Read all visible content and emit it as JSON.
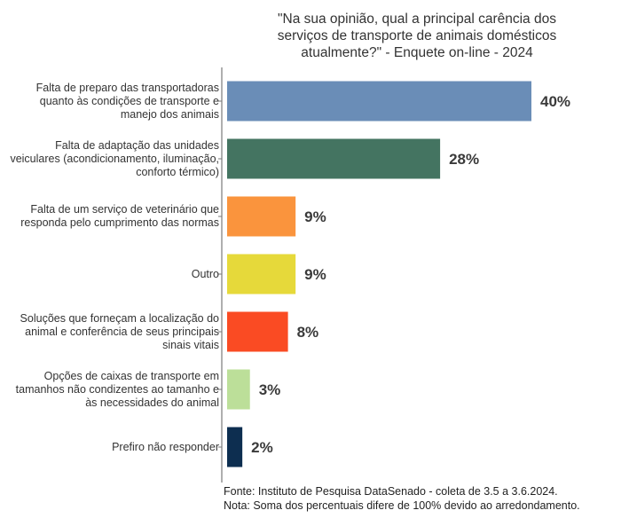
{
  "chart_data": {
    "type": "bar",
    "orientation": "horizontal",
    "title": "\"Na sua opinião, qual a principal carência dos serviços de transporte de animais domésticos atualmente?\" - Enquete on-line - 2024",
    "categories": [
      "Falta de preparo das transportadoras quanto às condições de transporte e manejo dos animais",
      "Falta de adaptação das unidades veiculares (acondicionamento, iluminação, conforto térmico)",
      "Falta de um serviço de veterinário que responda pelo cumprimento das normas",
      "Outro",
      "Soluções que forneçam a localização do animal e conferência de seus principais sinais vitais",
      "Opções de caixas de transporte em tamanhos não condizentes ao tamanho e às necessidades do animal",
      "Prefiro não responder"
    ],
    "values": [
      40,
      28,
      9,
      9,
      8,
      3,
      2
    ],
    "value_labels": [
      "40%",
      "28%",
      "9%",
      "9%",
      "8%",
      "3%",
      "2%"
    ],
    "colors": [
      "#6a8db7",
      "#447461",
      "#fa943d",
      "#e6d93a",
      "#fa4b23",
      "#bcdf99",
      "#0d2e50"
    ],
    "xlim": [
      0,
      40
    ],
    "xlabel": "",
    "ylabel": "",
    "grid": false,
    "legend": "none"
  },
  "footer": {
    "source": "Fonte: Instituto de Pesquisa DataSenado - coleta de 3.5 a 3.6.2024.",
    "note": "Nota: Soma dos percentuais difere de 100% devido ao arredondamento."
  }
}
